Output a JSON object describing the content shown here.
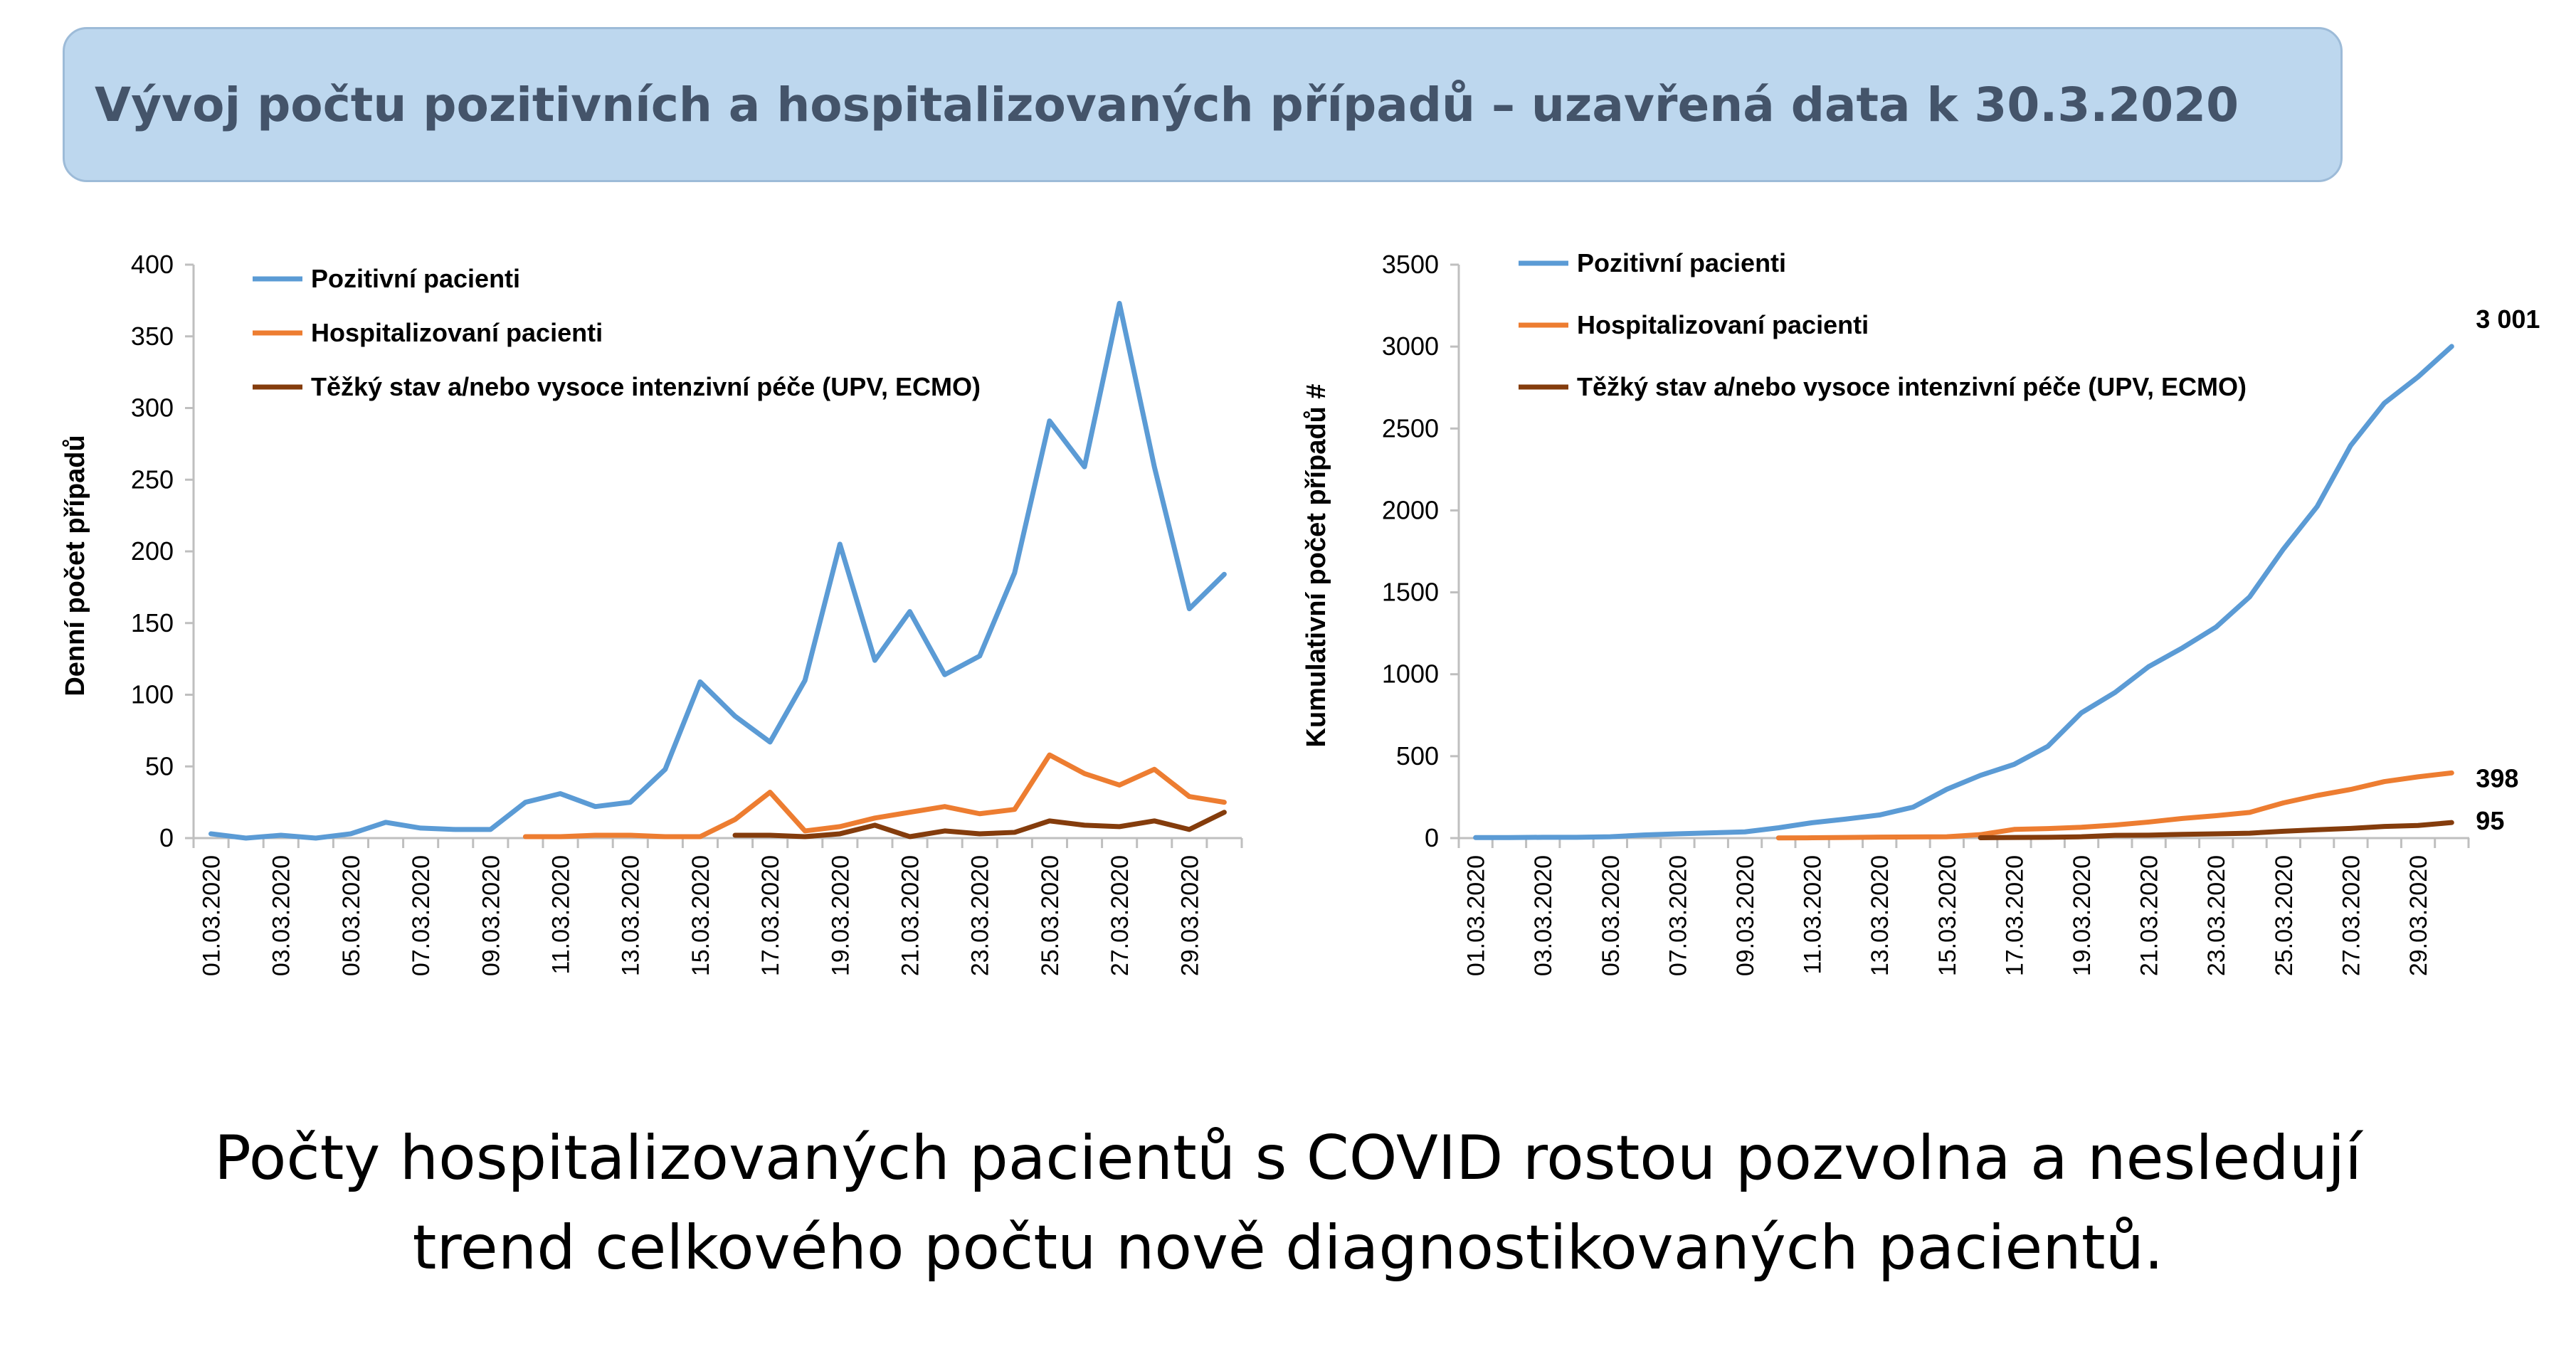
{
  "title": "Vývoj počtu pozitivních a hospitalizovaných případů – uzavřená data k 30.3.2020",
  "caption_line1": "Počty hospitalizovaných pacientů s COVID rostou pozvolna a nesledují",
  "caption_line2": "trend celkového počtu nově diagnostikovaných pacientů.",
  "colors": {
    "positive": "#5b9bd5",
    "hospitalized": "#ed7d31",
    "severe": "#843c0c",
    "title_bg": "#bdd7ee",
    "title_text": "#44546a"
  },
  "chart_data": [
    {
      "type": "line",
      "ylabel": "Denní počet případů",
      "ylim": [
        0,
        400
      ],
      "yticks": [
        "0",
        "50",
        "100",
        "150",
        "200",
        "250",
        "300",
        "350",
        "400"
      ],
      "x": [
        "01.03.2020",
        "02.03.2020",
        "03.03.2020",
        "04.03.2020",
        "05.03.2020",
        "06.03.2020",
        "07.03.2020",
        "08.03.2020",
        "09.03.2020",
        "10.03.2020",
        "11.03.2020",
        "12.03.2020",
        "13.03.2020",
        "14.03.2020",
        "15.03.2020",
        "16.03.2020",
        "17.03.2020",
        "18.03.2020",
        "19.03.2020",
        "20.03.2020",
        "21.03.2020",
        "22.03.2020",
        "23.03.2020",
        "24.03.2020",
        "25.03.2020",
        "26.03.2020",
        "27.03.2020",
        "28.03.2020",
        "29.03.2020",
        "30.03.2020"
      ],
      "xtick_labels": [
        "01.03.2020",
        "03.03.2020",
        "05.03.2020",
        "07.03.2020",
        "09.03.2020",
        "11.03.2020",
        "13.03.2020",
        "15.03.2020",
        "17.03.2020",
        "19.03.2020",
        "21.03.2020",
        "23.03.2020",
        "25.03.2020",
        "27.03.2020",
        "29.03.2020"
      ],
      "legend_position": "top-left",
      "grid": false,
      "series": [
        {
          "name": "Pozitivní pacienti",
          "color": "#5b9bd5",
          "values": [
            3,
            0,
            2,
            0,
            3,
            11,
            7,
            6,
            6,
            25,
            31,
            22,
            25,
            48,
            109,
            85,
            67,
            110,
            205,
            124,
            158,
            114,
            127,
            185,
            291,
            259,
            373,
            259,
            160,
            184
          ]
        },
        {
          "name": "Hospitalizovaní pacienti",
          "color": "#ed7d31",
          "values": [
            null,
            null,
            null,
            null,
            null,
            null,
            null,
            null,
            null,
            1,
            1,
            2,
            2,
            1,
            1,
            13,
            32,
            5,
            8,
            14,
            18,
            22,
            17,
            20,
            58,
            45,
            37,
            48,
            29,
            25
          ]
        },
        {
          "name": "Těžký stav a/nebo vysoce intenzivní péče (UPV, ECMO)",
          "color": "#843c0c",
          "values": [
            null,
            null,
            null,
            null,
            null,
            null,
            null,
            null,
            null,
            null,
            null,
            null,
            null,
            null,
            null,
            2,
            2,
            1,
            3,
            9,
            1,
            5,
            3,
            4,
            12,
            9,
            8,
            12,
            6,
            18
          ]
        }
      ]
    },
    {
      "type": "line",
      "ylabel": "Kumulativní počet případů #",
      "ylim": [
        0,
        3500
      ],
      "yticks": [
        "0",
        "500",
        "1000",
        "1500",
        "2000",
        "2500",
        "3000",
        "3500"
      ],
      "x": [
        "01.03.2020",
        "02.03.2020",
        "03.03.2020",
        "04.03.2020",
        "05.03.2020",
        "06.03.2020",
        "07.03.2020",
        "08.03.2020",
        "09.03.2020",
        "10.03.2020",
        "11.03.2020",
        "12.03.2020",
        "13.03.2020",
        "14.03.2020",
        "15.03.2020",
        "16.03.2020",
        "17.03.2020",
        "18.03.2020",
        "19.03.2020",
        "20.03.2020",
        "21.03.2020",
        "22.03.2020",
        "23.03.2020",
        "24.03.2020",
        "25.03.2020",
        "26.03.2020",
        "27.03.2020",
        "28.03.2020",
        "29.03.2020",
        "30.03.2020"
      ],
      "xtick_labels": [
        "01.03.2020",
        "03.03.2020",
        "05.03.2020",
        "07.03.2020",
        "09.03.2020",
        "11.03.2020",
        "13.03.2020",
        "15.03.2020",
        "17.03.2020",
        "19.03.2020",
        "21.03.2020",
        "23.03.2020",
        "25.03.2020",
        "27.03.2020",
        "29.03.2020"
      ],
      "legend_position": "top-left",
      "grid": false,
      "series": [
        {
          "name": "Pozitivní pacienti",
          "color": "#5b9bd5",
          "end_label": "3 001",
          "values": [
            3,
            3,
            5,
            5,
            8,
            19,
            26,
            32,
            38,
            63,
            94,
            116,
            141,
            189,
            298,
            383,
            450,
            560,
            765,
            889,
            1047,
            1161,
            1288,
            1473,
            1764,
            2023,
            2396,
            2655,
            2815,
            3001
          ]
        },
        {
          "name": "Hospitalizovaní pacienti",
          "color": "#ed7d31",
          "end_label": "398",
          "values": [
            null,
            null,
            null,
            null,
            null,
            null,
            null,
            null,
            null,
            1,
            2,
            4,
            6,
            7,
            8,
            21,
            53,
            58,
            66,
            80,
            98,
            120,
            137,
            157,
            215,
            260,
            297,
            345,
            374,
            398
          ]
        },
        {
          "name": "Těžký stav a/nebo vysoce intenzivní péče (UPV, ECMO)",
          "color": "#843c0c",
          "end_label": "95",
          "values": [
            null,
            null,
            null,
            null,
            null,
            null,
            null,
            null,
            null,
            null,
            null,
            null,
            null,
            null,
            null,
            2,
            4,
            5,
            8,
            17,
            18,
            23,
            26,
            30,
            42,
            51,
            59,
            71,
            77,
            95
          ]
        }
      ]
    }
  ]
}
